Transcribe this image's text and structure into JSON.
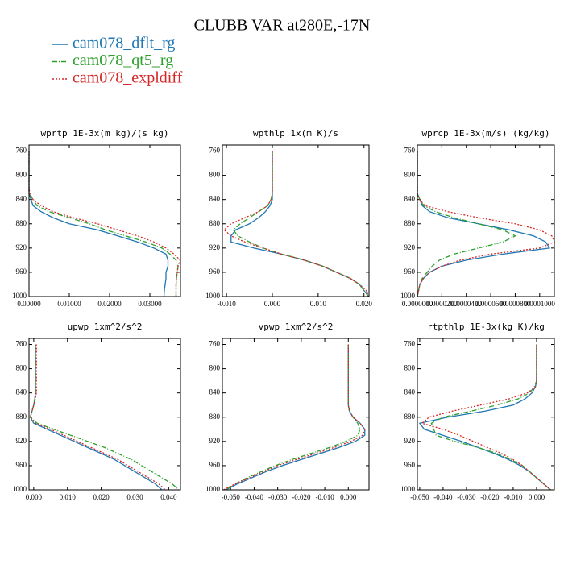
{
  "title": "CLUBB VAR at280E,-17N",
  "chart_data": [
    {
      "type": "line",
      "title": "wprtp  1E-3x(m kg)/(s kg)",
      "y": [
        760,
        780,
        800,
        820,
        830,
        840,
        850,
        860,
        870,
        880,
        890,
        900,
        910,
        920,
        930,
        940,
        950,
        960,
        970,
        980,
        990,
        1000
      ],
      "xlim": [
        0,
        0.0376
      ],
      "ylim": [
        1000,
        750
      ],
      "xticks": [
        {
          "value": 0,
          "label": "0.00000"
        },
        {
          "value": 0.01,
          "label": "0.01000"
        },
        {
          "value": 0.02,
          "label": "0.02000"
        },
        {
          "value": 0.03,
          "label": "0.03000"
        }
      ],
      "yticks": [
        760,
        800,
        840,
        880,
        920,
        960,
        1000
      ],
      "series": [
        {
          "name": "cam078_dflt_rg",
          "color": "#1f77b4",
          "style": "solid",
          "values": [
            0,
            0,
            0,
            0,
            0,
            0.0005,
            0.001,
            0.003,
            0.006,
            0.01,
            0.017,
            0.022,
            0.027,
            0.031,
            0.034,
            0.0345,
            0.0345,
            0.034,
            0.034,
            0.0338,
            0.0336,
            0.0335
          ]
        },
        {
          "name": "cam078_qt5_rg",
          "color": "#2ca02c",
          "style": "dashdot",
          "values": [
            0,
            0,
            0,
            0,
            0,
            0.001,
            0.002,
            0.005,
            0.01,
            0.015,
            0.019,
            0.024,
            0.029,
            0.033,
            0.035,
            0.0365,
            0.037,
            0.0368,
            0.0366,
            0.0365,
            0.0365,
            0.0365
          ]
        },
        {
          "name": "cam078_expldiff",
          "color": "#d62728",
          "style": "dotted",
          "values": [
            0,
            0,
            0,
            0,
            0.0002,
            0.001,
            0.003,
            0.006,
            0.011,
            0.017,
            0.022,
            0.027,
            0.031,
            0.034,
            0.036,
            0.0375,
            0.037,
            0.0368,
            0.0366,
            0.0365,
            0.0365,
            0.0365
          ]
        }
      ]
    },
    {
      "type": "line",
      "title": "wpthlp  1x(m K)/s",
      "y": [
        760,
        780,
        800,
        820,
        830,
        840,
        850,
        860,
        870,
        880,
        890,
        900,
        910,
        920,
        930,
        940,
        950,
        960,
        970,
        980,
        990,
        1000
      ],
      "xlim": [
        -0.0109,
        0.0211
      ],
      "ylim": [
        1000,
        750
      ],
      "xticks": [
        {
          "value": -0.01,
          "label": "-0.010"
        },
        {
          "value": 0,
          "label": "0.000"
        },
        {
          "value": 0.01,
          "label": "0.010"
        },
        {
          "value": 0.02,
          "label": "0.020"
        }
      ],
      "yticks": [
        760,
        800,
        840,
        880,
        920,
        960,
        1000
      ],
      "series": [
        {
          "name": "cam078_dflt_rg",
          "color": "#1f77b4",
          "style": "solid",
          "values": [
            0,
            0,
            0,
            0,
            0,
            0,
            -0.0005,
            -0.0015,
            -0.003,
            -0.005,
            -0.008,
            -0.009,
            -0.009,
            -0.004,
            0.002,
            0.007,
            0.011,
            0.014,
            0.017,
            0.019,
            0.02,
            0.021
          ]
        },
        {
          "name": "cam078_qt5_rg",
          "color": "#2ca02c",
          "style": "dashdot",
          "values": [
            0,
            0,
            0,
            0,
            0,
            -0.0003,
            -0.001,
            -0.003,
            -0.005,
            -0.007,
            -0.0085,
            -0.0075,
            -0.005,
            -0.002,
            0.002,
            0.007,
            0.011,
            0.014,
            0.017,
            0.019,
            0.02,
            0.021
          ]
        },
        {
          "name": "cam078_expldiff",
          "color": "#d62728",
          "style": "dotted",
          "values": [
            0,
            0,
            0,
            0,
            0,
            -0.0003,
            -0.001,
            -0.003,
            -0.006,
            -0.009,
            -0.0105,
            -0.009,
            -0.006,
            -0.002,
            0.002,
            0.007,
            0.011,
            0.014,
            0.017,
            0.019,
            0.0205,
            0.021
          ]
        }
      ]
    },
    {
      "type": "line",
      "title": "wprcp  1E-3x(m/s) (kg/kg)",
      "y": [
        760,
        780,
        800,
        820,
        830,
        840,
        850,
        860,
        870,
        880,
        890,
        900,
        910,
        920,
        930,
        940,
        950,
        960,
        970,
        980,
        990,
        1000
      ],
      "xlim": [
        0,
        0.000112
      ],
      "ylim": [
        1000,
        750
      ],
      "xticks": [
        {
          "value": 0,
          "label": "0.0000000"
        },
        {
          "value": 2e-05,
          "label": "0.0000200"
        },
        {
          "value": 4e-05,
          "label": "0.0000400"
        },
        {
          "value": 6e-05,
          "label": "0.0000600"
        },
        {
          "value": 8e-05,
          "label": "0.0000800"
        },
        {
          "value": 0.0001,
          "label": "0.0001000"
        }
      ],
      "yticks": [
        760,
        800,
        840,
        880,
        920,
        960,
        1000
      ],
      "series": [
        {
          "name": "cam078_dflt_rg",
          "color": "#1f77b4",
          "style": "solid",
          "values": [
            0,
            0,
            0,
            0,
            0,
            2e-06,
            4e-06,
            1e-05,
            2.5e-05,
            5e-05,
            7.5e-05,
            9.5e-05,
            0.000105,
            0.000108,
            7e-05,
            4e-05,
            2e-05,
            1e-05,
            5e-06,
            2e-06,
            1e-06,
            0
          ]
        },
        {
          "name": "cam078_qt5_rg",
          "color": "#2ca02c",
          "style": "dashdot",
          "values": [
            0,
            0,
            0,
            0,
            0,
            2e-06,
            5e-06,
            1.5e-05,
            3e-05,
            5e-05,
            7e-05,
            8e-05,
            7e-05,
            5e-05,
            3e-05,
            1.8e-05,
            1.2e-05,
            8e-06,
            4e-06,
            2e-06,
            1e-06,
            0
          ]
        },
        {
          "name": "cam078_expldiff",
          "color": "#d62728",
          "style": "dotted",
          "values": [
            0,
            0,
            0,
            0,
            0,
            2e-06,
            6e-06,
            2.5e-05,
            5e-05,
            8e-05,
            0.0001,
            0.00011,
            0.000112,
            0.0001,
            6e-05,
            3.5e-05,
            2e-05,
            1e-05,
            5e-06,
            2e-06,
            1e-06,
            0
          ]
        }
      ]
    },
    {
      "type": "line",
      "title": "upwp  1xm^2/s^2",
      "y": [
        760,
        780,
        800,
        820,
        830,
        840,
        850,
        860,
        870,
        880,
        890,
        900,
        910,
        920,
        930,
        940,
        950,
        960,
        970,
        980,
        990,
        1000
      ],
      "xlim": [
        -0.0014,
        0.0435
      ],
      "ylim": [
        1000,
        750
      ],
      "xticks": [
        {
          "value": 0,
          "label": "0.000"
        },
        {
          "value": 0.01,
          "label": "0.010"
        },
        {
          "value": 0.02,
          "label": "0.020"
        },
        {
          "value": 0.03,
          "label": "0.030"
        },
        {
          "value": 0.04,
          "label": "0.040"
        }
      ],
      "yticks": [
        760,
        800,
        840,
        880,
        920,
        960,
        1000
      ],
      "series": [
        {
          "name": "cam078_dflt_rg",
          "color": "#1f77b4",
          "style": "solid",
          "values": [
            0.0005,
            0.0005,
            0.0005,
            0.0005,
            0.0005,
            0.0005,
            0.0003,
            0,
            -0.0005,
            -0.001,
            0,
            0.004,
            0.008,
            0.012,
            0.016,
            0.02,
            0.024,
            0.027,
            0.03,
            0.033,
            0.036,
            0.038
          ]
        },
        {
          "name": "cam078_qt5_rg",
          "color": "#2ca02c",
          "style": "dashdot",
          "values": [
            0.0005,
            0.0005,
            0.0005,
            0.0005,
            0.0005,
            0.0005,
            0.0003,
            0,
            -0.0005,
            -0.001,
            0.001,
            0.006,
            0.011,
            0.016,
            0.021,
            0.025,
            0.029,
            0.032,
            0.035,
            0.038,
            0.041,
            0.043
          ]
        },
        {
          "name": "cam078_expldiff",
          "color": "#d62728",
          "style": "dotted",
          "values": [
            0.0008,
            0.0008,
            0.0008,
            0.0008,
            0.0008,
            0.0008,
            0.0005,
            0,
            -0.0005,
            -0.001,
            0.0005,
            0.005,
            0.009,
            0.013,
            0.017,
            0.021,
            0.025,
            0.028,
            0.031,
            0.034,
            0.037,
            0.039
          ]
        }
      ]
    },
    {
      "type": "line",
      "title": "vpwp  1xm^2/s^2",
      "y": [
        760,
        780,
        800,
        820,
        830,
        840,
        850,
        860,
        870,
        880,
        890,
        900,
        910,
        920,
        930,
        940,
        950,
        960,
        970,
        980,
        990,
        1000
      ],
      "xlim": [
        -0.0535,
        0.0088
      ],
      "ylim": [
        1000,
        750
      ],
      "xticks": [
        {
          "value": -0.05,
          "label": "-0.050"
        },
        {
          "value": -0.04,
          "label": "-0.040"
        },
        {
          "value": -0.03,
          "label": "-0.030"
        },
        {
          "value": -0.02,
          "label": "-0.020"
        },
        {
          "value": -0.01,
          "label": "-0.010"
        },
        {
          "value": 0,
          "label": "0.000"
        }
      ],
      "yticks": [
        760,
        800,
        840,
        880,
        920,
        960,
        1000
      ],
      "series": [
        {
          "name": "cam078_dflt_rg",
          "color": "#1f77b4",
          "style": "solid",
          "values": [
            0,
            0,
            0,
            0,
            0,
            0,
            0,
            0,
            0.0005,
            0.002,
            0.005,
            0.007,
            0.007,
            0.003,
            -0.004,
            -0.012,
            -0.02,
            -0.028,
            -0.035,
            -0.041,
            -0.047,
            -0.052
          ]
        },
        {
          "name": "cam078_qt5_rg",
          "color": "#2ca02c",
          "style": "dashdot",
          "values": [
            0,
            0,
            0,
            0,
            0,
            0,
            0,
            0,
            0.0005,
            0.002,
            0.004,
            0.005,
            0.004,
            -0.001,
            -0.008,
            -0.016,
            -0.024,
            -0.031,
            -0.037,
            -0.043,
            -0.048,
            -0.052
          ]
        },
        {
          "name": "cam078_expldiff",
          "color": "#d62728",
          "style": "dotted",
          "values": [
            0,
            0,
            0,
            0,
            0,
            0,
            0,
            0,
            0.0005,
            0.002,
            0.005,
            0.007,
            0.006,
            0.001,
            -0.006,
            -0.014,
            -0.022,
            -0.03,
            -0.036,
            -0.042,
            -0.048,
            -0.053
          ]
        }
      ]
    },
    {
      "type": "line",
      "title": "rtpthlp  1E-3x(kg K)/kg",
      "y": [
        760,
        780,
        800,
        820,
        830,
        840,
        850,
        860,
        870,
        880,
        890,
        900,
        910,
        920,
        930,
        940,
        950,
        960,
        970,
        980,
        990,
        1000
      ],
      "xlim": [
        -0.051,
        0.0076
      ],
      "ylim": [
        1000,
        750
      ],
      "xticks": [
        {
          "value": -0.05,
          "label": "-0.050"
        },
        {
          "value": -0.04,
          "label": "-0.040"
        },
        {
          "value": -0.03,
          "label": "-0.030"
        },
        {
          "value": -0.02,
          "label": "-0.020"
        },
        {
          "value": -0.01,
          "label": "-0.010"
        },
        {
          "value": 0,
          "label": "0.000"
        }
      ],
      "yticks": [
        760,
        800,
        840,
        880,
        920,
        960,
        1000
      ],
      "series": [
        {
          "name": "cam078_dflt_rg",
          "color": "#1f77b4",
          "style": "solid",
          "values": [
            0,
            0,
            0,
            0,
            -0.0005,
            -0.002,
            -0.005,
            -0.01,
            -0.022,
            -0.038,
            -0.05,
            -0.048,
            -0.04,
            -0.032,
            -0.025,
            -0.018,
            -0.012,
            -0.007,
            -0.003,
            0,
            0.003,
            0.006
          ]
        },
        {
          "name": "cam078_qt5_rg",
          "color": "#2ca02c",
          "style": "dashdot",
          "values": [
            0,
            0,
            0,
            0,
            -0.001,
            -0.003,
            -0.008,
            -0.017,
            -0.028,
            -0.04,
            -0.045,
            -0.044,
            -0.043,
            -0.035,
            -0.025,
            -0.017,
            -0.011,
            -0.006,
            -0.003,
            0,
            0.003,
            0.006
          ]
        },
        {
          "name": "cam078_expldiff",
          "color": "#d62728",
          "style": "dotted",
          "values": [
            0,
            0,
            0,
            0,
            -0.0005,
            -0.004,
            -0.012,
            -0.024,
            -0.036,
            -0.046,
            -0.049,
            -0.04,
            -0.033,
            -0.027,
            -0.021,
            -0.015,
            -0.01,
            -0.006,
            -0.003,
            0,
            0.003,
            0.006
          ]
        }
      ]
    }
  ]
}
